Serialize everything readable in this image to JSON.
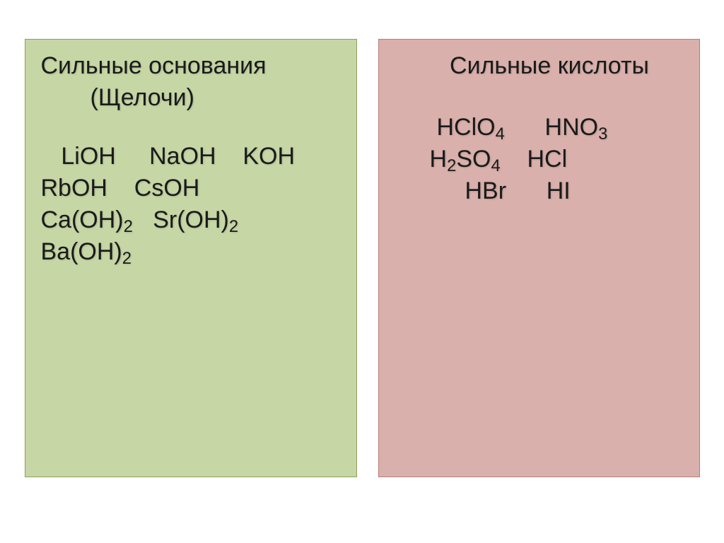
{
  "left_panel": {
    "background_color": "#c6d6a5",
    "border_color": "#8ba15a",
    "title": "Сильные основания",
    "subtitle": "(Щелочи)",
    "rows": [
      {
        "items": [
          " LiOH",
          "NaOH",
          "KOH"
        ],
        "leading_space": true
      },
      {
        "items": [
          "RbOH",
          "CsOH"
        ]
      },
      {
        "items": [
          "Ca(OH)2",
          "Sr(OH)2"
        ],
        "subscripts": true
      },
      {
        "items": [
          "Ba(OH)2"
        ],
        "subscripts": true
      }
    ]
  },
  "right_panel": {
    "background_color": "#d9b0ab",
    "border_color": "#b97f78",
    "title": "Сильные кислоты",
    "rows": [
      {
        "items": [
          "HClO4",
          "HNO3"
        ],
        "indent": "indent-right-1"
      },
      {
        "items": [
          "H2SO4",
          "HCl"
        ],
        "indent": "indent-right-2"
      },
      {
        "items": [
          "HBr",
          "HI"
        ],
        "indent": "indent-right-3"
      }
    ]
  },
  "typography": {
    "title_fontsize": 34,
    "formula_fontsize": 34,
    "text_color": "#1a1a1a",
    "body_background": "#ffffff"
  }
}
